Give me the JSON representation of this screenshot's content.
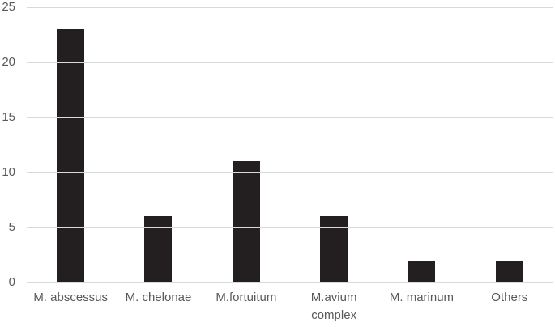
{
  "chart_data": {
    "type": "bar",
    "categories": [
      "M. abscessus",
      "M. chelonae",
      "M.fortuitum",
      "M.avium complex",
      "M. marinum",
      "Others"
    ],
    "values": [
      23,
      6,
      11,
      6,
      2,
      2
    ],
    "title": "",
    "xlabel": "",
    "ylabel": "",
    "ylim": [
      0,
      25
    ],
    "yticks": [
      0,
      5,
      10,
      15,
      20,
      25
    ],
    "grid": true,
    "legend": false,
    "layout": {
      "bar_color": "#231f20",
      "gridline_color": "#d9d9d9",
      "axis_text_color": "#595959",
      "background_color": "#ffffff",
      "legend_position": "none"
    }
  }
}
